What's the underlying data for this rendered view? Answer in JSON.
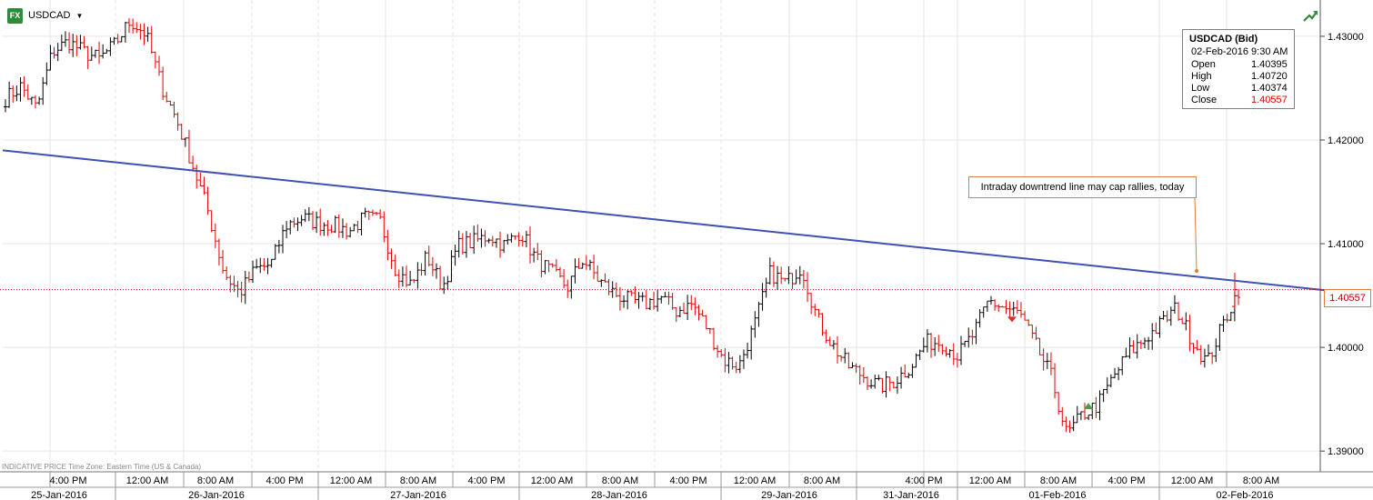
{
  "header": {
    "symbol": "USDCAD",
    "fx_badge": "FX",
    "icons": [
      "fx-badge-icon",
      "dropdown-caret-icon",
      "trend-arrow-icon"
    ]
  },
  "info_box": {
    "title": "USDCAD (Bid)",
    "datetime": "02-Feb-2016 9:30 AM",
    "rows": [
      {
        "label": "Open",
        "value": "1.40395"
      },
      {
        "label": "High",
        "value": "1.40720"
      },
      {
        "label": "Low",
        "value": "1.40374"
      },
      {
        "label": "Close",
        "value": "1.40557"
      }
    ]
  },
  "annotation": "Intraday downtrend line may cap rallies, today",
  "last_price": "1.40557",
  "footer_note": "INDICATIVE PRICE   Time Zone: Eastern Time (US & Canada)",
  "colors": {
    "up": "#000000",
    "down": "#e00000",
    "trendline": "#3f51b5",
    "price_line": "#c00000",
    "annotation_border": "#e07b39"
  },
  "chart_data": {
    "type": "ohlc",
    "title": "",
    "xlabel": "",
    "ylabel": "",
    "ylim": [
      1.388,
      1.4335
    ],
    "y_ticks": [
      "1.39000",
      "1.40000",
      "1.41000",
      "1.42000",
      "1.43000"
    ],
    "x_time_ticks": [
      "4:00 PM",
      "12:00 AM",
      "8:00 AM",
      "4:00 PM",
      "12:00 AM",
      "8:00 AM",
      "4:00 PM",
      "12:00 AM",
      "8:00 AM",
      "4:00 PM",
      "12:00 AM",
      "8:00 AM",
      "4:00 PM",
      "12:00 AM",
      "8:00 AM",
      "4:00 PM",
      "12:00 AM",
      "8:00 AM"
    ],
    "x_date_labels": [
      "25-Jan-2016",
      "26-Jan-2016",
      "27-Jan-2016",
      "28-Jan-2016",
      "29-Jan-2016",
      "31-Jan-2016",
      "01-Feb-2016",
      "02-Feb-2016"
    ],
    "series": [
      {
        "type": "ohlc",
        "close_path": [
          1.424,
          1.4252,
          1.423,
          1.4285,
          1.4295,
          1.4285,
          1.4278,
          1.4292,
          1.4315,
          1.4302,
          1.4252,
          1.4218,
          1.4175,
          1.413,
          1.4072,
          1.4052,
          1.4075,
          1.408,
          1.4118,
          1.4125,
          1.412,
          1.4118,
          1.4112,
          1.4125,
          1.4122,
          1.4075,
          1.406,
          1.4088,
          1.4058,
          1.4098,
          1.4102,
          1.4108,
          1.4098,
          1.4112,
          1.4085,
          1.4072,
          1.4058,
          1.4085,
          1.4065,
          1.4052,
          1.4045,
          1.4042,
          1.4048,
          1.4035,
          1.4042,
          1.4018,
          1.3988,
          1.3982,
          1.4022,
          1.4072,
          1.4062,
          1.4078,
          1.4028,
          1.4002,
          1.3982,
          1.3972,
          1.3962,
          1.3968,
          1.3982,
          1.4005,
          1.4005,
          1.3992,
          1.4012,
          1.4045,
          1.4038,
          1.4032,
          1.4002,
          1.3972,
          1.3915,
          1.3935,
          1.3945,
          1.3972,
          1.3995,
          1.4008,
          1.4022,
          1.4038,
          1.4008,
          1.3985,
          1.4022,
          1.4056
        ]
      }
    ],
    "last_bar": {
      "time": "02-Feb-2016 9:30 AM",
      "open": 1.40395,
      "high": 1.4072,
      "low": 1.40374,
      "close": 1.40557
    },
    "trendline": {
      "start": {
        "x": "25-Jan-2016 8:00 AM",
        "y": 1.419
      },
      "end": {
        "x": "02-Feb-2016 12:00 PM",
        "y": 1.4055
      }
    },
    "markers": [
      {
        "type": "down-triangle",
        "x": "01-Feb-2016 4:00 AM",
        "y": 1.4027
      },
      {
        "type": "up-triangle",
        "x": "01-Feb-2016 2:00 PM",
        "y": 1.3943
      }
    ]
  }
}
